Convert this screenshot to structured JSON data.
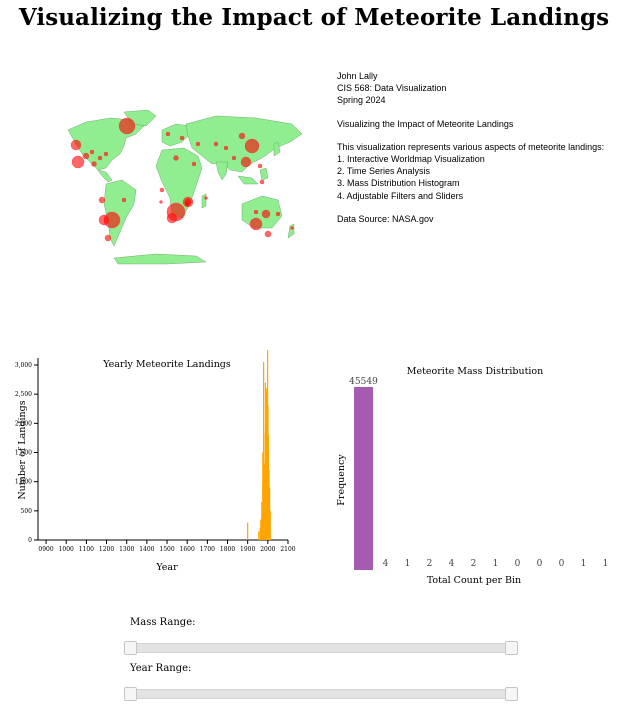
{
  "title": "Visualizing the Impact of Meteorite Landings",
  "info": {
    "author": "John Lally",
    "course": "CIS 568: Data Visualization",
    "term": "Spring 2024",
    "heading": "Visualizing the Impact of Meteorite Landings",
    "intro": "This visualization represents various aspects of meteorite landings:",
    "items": [
      "1. Interactive Worldmap Visualization",
      "2. Time Series Analysis",
      "3. Mass Distribution Histogram",
      "4. Adjustable Filters and Sliders"
    ],
    "source": "Data Source: NASA.gov"
  },
  "colors": {
    "land": "#90ee90",
    "meteor": "#ff0000",
    "line": "#ffa500",
    "histogram": "#a55cb0"
  },
  "chart_data": [
    {
      "type": "line",
      "title": "Yearly Meteorite Landings",
      "xlabel": "Year",
      "ylabel": "Number of Landings",
      "xlim": [
        860,
        2100
      ],
      "ylim": [
        0,
        3000
      ],
      "xticks": [
        "0900",
        "1000",
        "1100",
        "1200",
        "1300",
        "1400",
        "1500",
        "1600",
        "1700",
        "1800",
        "1900",
        "2000",
        "2100"
      ],
      "yticks": [
        "0",
        "500",
        "1,000",
        "1,500",
        "2,000",
        "2,500",
        "3,000"
      ],
      "spikes": [
        {
          "year": 1900,
          "value": 300
        },
        {
          "year": 1955,
          "value": 150
        },
        {
          "year": 1965,
          "value": 350
        },
        {
          "year": 1970,
          "value": 650
        },
        {
          "year": 1975,
          "value": 1500
        },
        {
          "year": 1979,
          "value": 3050
        },
        {
          "year": 1985,
          "value": 1300
        },
        {
          "year": 1988,
          "value": 2700
        },
        {
          "year": 1990,
          "value": 1750
        },
        {
          "year": 1993,
          "value": 2600
        },
        {
          "year": 1995,
          "value": 2000
        },
        {
          "year": 1997,
          "value": 2100
        },
        {
          "year": 1999,
          "value": 3300
        },
        {
          "year": 2001,
          "value": 2300
        },
        {
          "year": 2003,
          "value": 1800
        },
        {
          "year": 2006,
          "value": 1200
        },
        {
          "year": 2009,
          "value": 900
        },
        {
          "year": 2012,
          "value": 500
        }
      ]
    },
    {
      "type": "bar",
      "title": "Meteorite Mass Distribution",
      "xlabel": "Total Count per Bin",
      "ylabel": "Frequency",
      "values": [
        45549,
        4,
        1,
        2,
        4,
        2,
        1,
        0,
        0,
        0,
        1,
        1,
        1
      ],
      "labels": [
        "45549",
        "4",
        "1",
        "2",
        "4",
        "2",
        "1",
        "0",
        "0",
        "0",
        "1",
        "1",
        "1"
      ]
    }
  ],
  "sliders": {
    "mass": {
      "label": "Mass Range:",
      "low": 0.0,
      "high": 1.0
    },
    "year": {
      "label": "Year Range:",
      "low": 0.0,
      "high": 1.0
    }
  }
}
